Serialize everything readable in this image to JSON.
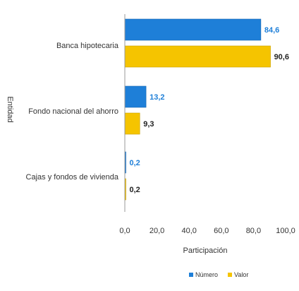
{
  "chart_data": {
    "type": "bar",
    "orientation": "horizontal",
    "ylabel": "Entidad",
    "xlabel": "Participación",
    "categories": [
      "Banca hipotecaria",
      "Fondo nacional del ahorro",
      "Cajas y fondos de vivienda"
    ],
    "series": [
      {
        "name": "Número",
        "values": [
          84.6,
          13.2,
          0.2
        ],
        "labels": [
          "84,6",
          "13,2",
          "0,2"
        ],
        "color": "#1E7FD8"
      },
      {
        "name": "Valor",
        "values": [
          90.6,
          9.3,
          0.2
        ],
        "labels": [
          "90,6",
          "9,3",
          "0,2"
        ],
        "color": "#F5C400"
      }
    ],
    "xlim": [
      0,
      100
    ],
    "xticks": [
      "0,0",
      "20,0",
      "40,0",
      "60,0",
      "80,0",
      "100,0"
    ],
    "grid": false,
    "legend_position": "bottom-right"
  }
}
